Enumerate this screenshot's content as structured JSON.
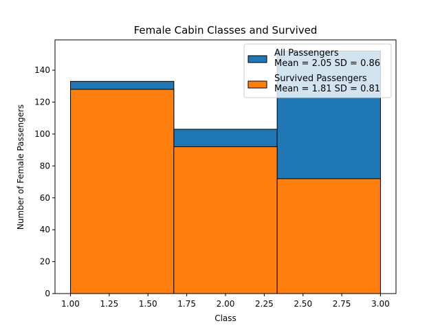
{
  "chart_data": {
    "type": "bar",
    "title": "Female Cabin Classes and Survived",
    "xlabel": "Class",
    "ylabel": "Number of Female Passengers",
    "xlim": [
      0.9,
      3.1
    ],
    "ylim": [
      0,
      159
    ],
    "xticks": [
      "1.00",
      "1.25",
      "1.50",
      "1.75",
      "2.00",
      "2.25",
      "2.50",
      "2.75",
      "3.00"
    ],
    "yticks": [
      "0",
      "20",
      "40",
      "60",
      "80",
      "100",
      "120",
      "140"
    ],
    "bin_edges": [
      1.0,
      1.6667,
      2.3333,
      3.0
    ],
    "series": [
      {
        "name": "All Passengers",
        "legend_line1": "All Passengers",
        "legend_line2": "Mean = 2.05 SD = 0.86",
        "color": "#1f77b4",
        "values": [
          133,
          103,
          152
        ]
      },
      {
        "name": "Survived Passengers",
        "legend_line1": "Survived Passengers",
        "legend_line2": "Mean = 1.81 SD = 0.81",
        "color": "#ff7f0e",
        "values": [
          128,
          92,
          72
        ]
      }
    ],
    "legend_position": "top-right",
    "grid": false
  }
}
